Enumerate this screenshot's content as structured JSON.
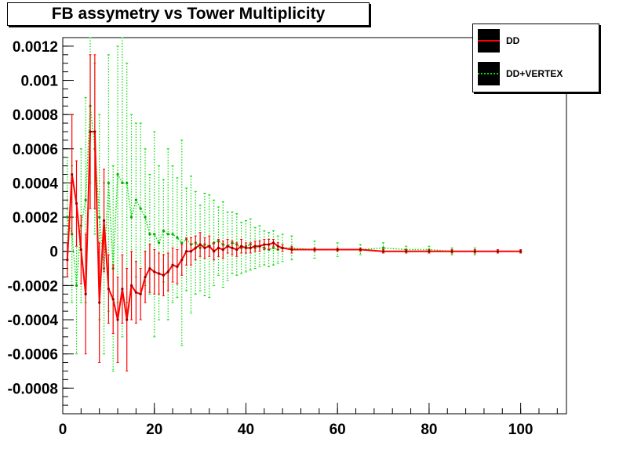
{
  "chart_data": {
    "type": "line",
    "title": "FB assymetry vs Tower Multiplicity",
    "xlabel": "",
    "ylabel": "",
    "xlim": [
      0,
      110
    ],
    "ylim": [
      -0.00095,
      0.00125
    ],
    "xticks": [
      0,
      20,
      40,
      60,
      80,
      100
    ],
    "yticks": [
      -0.0008,
      -0.0006,
      -0.0004,
      -0.0002,
      0,
      0.0002,
      0.0004,
      0.0006,
      0.0008,
      0.001,
      0.0012
    ],
    "ytick_labels": [
      "-0.0008",
      "-0.0006",
      "-0.0004",
      "-0.0002",
      "0",
      "0.0002",
      "0.0004",
      "0.0006",
      "0.0008",
      "0.001",
      "0.0012"
    ],
    "grid": false,
    "legend_position": "top-right",
    "series": [
      {
        "name": "DD",
        "color": "#ff0000",
        "style": "solid",
        "x": [
          1,
          2,
          3,
          4,
          5,
          6,
          7,
          8,
          9,
          10,
          11,
          12,
          13,
          14,
          15,
          16,
          17,
          18,
          19,
          20,
          21,
          22,
          23,
          24,
          25,
          26,
          27,
          28,
          29,
          30,
          31,
          32,
          33,
          34,
          35,
          36,
          37,
          38,
          39,
          40,
          41,
          42,
          43,
          44,
          45,
          46,
          47,
          48,
          50,
          55,
          60,
          65,
          70,
          75,
          80,
          85,
          90,
          95,
          100
        ],
        "y": [
          -5e-05,
          0.00045,
          0.00028,
          1e-05,
          -0.00025,
          0.0007,
          0.0007,
          -0.0003,
          0.00018,
          -0.00022,
          -0.00028,
          -0.0004,
          -0.00022,
          -0.0004,
          -0.0002,
          -0.00024,
          -0.00025,
          -0.00015,
          -0.0001,
          -0.00012,
          -0.00013,
          -0.00014,
          -0.00012,
          -8e-05,
          -9e-05,
          -5e-05,
          0.0,
          0.0,
          2e-05,
          4e-05,
          2e-05,
          3e-05,
          0.0,
          2e-05,
          1e-05,
          3e-05,
          2e-05,
          1e-05,
          3e-05,
          2e-05,
          2e-05,
          3e-05,
          3e-05,
          4e-05,
          4e-05,
          5e-05,
          3e-05,
          2e-05,
          1e-05,
          1e-05,
          1e-05,
          1e-05,
          0.0,
          0.0,
          0.0,
          0.0,
          0.0,
          0.0,
          0.0
        ],
        "err": [
          0.0001,
          0.00035,
          0.00025,
          0.0002,
          0.00035,
          0.00045,
          0.00045,
          0.00035,
          0.0003,
          0.0002,
          0.0002,
          0.00025,
          0.0002,
          0.0003,
          0.0002,
          0.00018,
          0.00015,
          0.00015,
          0.00014,
          0.00013,
          0.00012,
          0.00012,
          0.00011,
          0.0001,
          0.0001,
          9e-05,
          8e-05,
          8e-05,
          7e-05,
          7e-05,
          6e-05,
          6e-05,
          5e-05,
          5e-05,
          5e-05,
          4e-05,
          4e-05,
          4e-05,
          4e-05,
          3e-05,
          3e-05,
          3e-05,
          3e-05,
          3e-05,
          3e-05,
          2e-05,
          2e-05,
          2e-05,
          2e-05,
          1e-05,
          1e-05,
          1e-05,
          1e-05,
          1e-05,
          1e-05,
          1e-05,
          1e-05,
          1e-05,
          1e-05
        ]
      },
      {
        "name": "DD+VERTEX",
        "color": "#00dd00",
        "style": "dotted",
        "x": [
          1,
          2,
          3,
          4,
          5,
          6,
          7,
          8,
          9,
          10,
          11,
          12,
          13,
          14,
          15,
          16,
          17,
          18,
          19,
          20,
          21,
          22,
          23,
          24,
          25,
          26,
          27,
          28,
          29,
          30,
          31,
          32,
          33,
          34,
          35,
          36,
          37,
          38,
          39,
          40,
          41,
          42,
          43,
          44,
          45,
          46,
          47,
          48,
          50,
          55,
          60,
          65,
          70,
          75,
          80,
          85,
          90,
          95,
          100
        ],
        "y": [
          0.0002,
          0.0001,
          -0.0002,
          0.00015,
          0.0003,
          0.00085,
          0.0006,
          0.0002,
          -0.0001,
          0.0004,
          -0.0001,
          0.00045,
          0.0004,
          0.0004,
          0.0002,
          0.0003,
          0.00025,
          0.0002,
          0.0001,
          0.0001,
          5e-05,
          0.00012,
          0.0001,
          0.0001,
          8e-05,
          5e-05,
          7e-05,
          4e-05,
          5e-05,
          2e-05,
          4e-05,
          3e-05,
          5e-05,
          6e-05,
          4e-05,
          3e-05,
          5e-05,
          4e-05,
          2e-05,
          3e-05,
          4e-05,
          2e-05,
          3e-05,
          2e-05,
          1e-05,
          2e-05,
          1e-05,
          2e-05,
          2e-05,
          1e-05,
          1e-05,
          1e-05,
          2e-05,
          1e-05,
          1e-05,
          0.0,
          0.0,
          0.0,
          0.0
        ],
        "err": [
          0.00035,
          0.0004,
          0.0004,
          0.00045,
          0.0006,
          0.00045,
          0.0005,
          0.0006,
          0.0005,
          0.00075,
          0.0006,
          0.00075,
          0.0009,
          0.0007,
          0.0006,
          0.00045,
          0.0005,
          0.0004,
          0.00035,
          0.0006,
          0.00045,
          0.0003,
          0.0005,
          0.0004,
          0.00035,
          0.0006,
          0.0003,
          0.0004,
          0.0003,
          0.00025,
          0.0003,
          0.0003,
          0.00025,
          0.0002,
          0.00025,
          0.0002,
          0.00018,
          0.00018,
          0.00015,
          0.00015,
          0.00015,
          0.00012,
          0.00012,
          0.0001,
          0.0001,
          0.0001,
          8e-05,
          8e-05,
          7e-05,
          5e-05,
          4e-05,
          3e-05,
          3e-05,
          2e-05,
          2e-05,
          2e-05,
          2e-05,
          1e-05,
          1e-05
        ]
      }
    ]
  }
}
